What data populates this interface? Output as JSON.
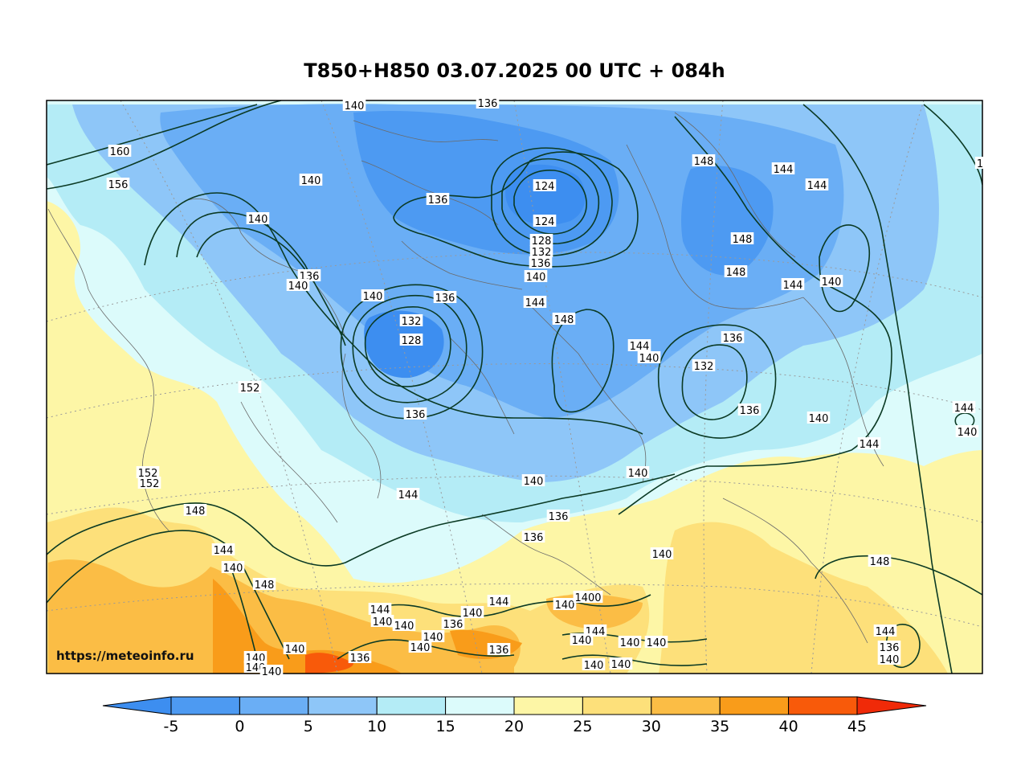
{
  "title": "T850+H850 03.07.2025 00 UTC + 084h",
  "watermark": "https://meteoinfo.ru",
  "colors": {
    "t_lt_m5": "#3d8ef0",
    "t_m5_0": "#4d9af2",
    "t_0_5": "#6aaef5",
    "t_5_10": "#8ec6f8",
    "t_10_15": "#b4ecf6",
    "t_15_20": "#dcfbfb",
    "t_20_25": "#fdf6a6",
    "t_25_30": "#fde07a",
    "t_30_35": "#fbbd45",
    "t_35_40": "#f99c1a",
    "t_40_45": "#f85a0a",
    "t_gt_45": "#f02a08",
    "contour": "#0b3a24"
  },
  "colorbar": {
    "ticks": [
      "-5",
      "0",
      "5",
      "10",
      "15",
      "20",
      "25",
      "30",
      "35",
      "40",
      "45"
    ]
  },
  "contour_labels": [
    {
      "text": "140",
      "id": "l1"
    },
    {
      "text": "136",
      "id": "l2"
    },
    {
      "text": "160",
      "id": "l3"
    },
    {
      "text": "156",
      "id": "l4"
    },
    {
      "text": "140",
      "id": "l5"
    },
    {
      "text": "136",
      "id": "l6"
    },
    {
      "text": "140",
      "id": "l7"
    },
    {
      "text": "124",
      "id": "l8"
    },
    {
      "text": "124",
      "id": "l9"
    },
    {
      "text": "128",
      "id": "l10"
    },
    {
      "text": "132",
      "id": "l11"
    },
    {
      "text": "136",
      "id": "l12"
    },
    {
      "text": "140",
      "id": "l13"
    },
    {
      "text": "148",
      "id": "l14"
    },
    {
      "text": "144",
      "id": "l15"
    },
    {
      "text": "144",
      "id": "l16"
    },
    {
      "text": "148",
      "id": "l17"
    },
    {
      "text": "148",
      "id": "l18"
    },
    {
      "text": "144",
      "id": "l19"
    },
    {
      "text": "140",
      "id": "l20"
    },
    {
      "text": "136",
      "id": "l21"
    },
    {
      "text": "140",
      "id": "l22"
    },
    {
      "text": "136",
      "id": "l23"
    },
    {
      "text": "132",
      "id": "l24"
    },
    {
      "text": "128",
      "id": "l25"
    },
    {
      "text": "144",
      "id": "l26"
    },
    {
      "text": "148",
      "id": "l27"
    },
    {
      "text": "136",
      "id": "l28"
    },
    {
      "text": "144",
      "id": "l29"
    },
    {
      "text": "140",
      "id": "l30"
    },
    {
      "text": "132",
      "id": "l31"
    },
    {
      "text": "136",
      "id": "l32"
    },
    {
      "text": "140",
      "id": "l33"
    },
    {
      "text": "144",
      "id": "l34"
    },
    {
      "text": "140",
      "id": "l35"
    },
    {
      "text": "144",
      "id": "l36"
    },
    {
      "text": "152",
      "id": "l37"
    },
    {
      "text": "136",
      "id": "l38"
    },
    {
      "text": "152",
      "id": "l39"
    },
    {
      "text": "152",
      "id": "l40"
    },
    {
      "text": "148",
      "id": "l41"
    },
    {
      "text": "144",
      "id": "l42"
    },
    {
      "text": "140",
      "id": "l43"
    },
    {
      "text": "148",
      "id": "l44"
    },
    {
      "text": "140",
      "id": "l45"
    },
    {
      "text": "144",
      "id": "l46"
    },
    {
      "text": "140",
      "id": "l47"
    },
    {
      "text": "136",
      "id": "l48"
    },
    {
      "text": "136",
      "id": "l49"
    },
    {
      "text": "140",
      "id": "l50"
    },
    {
      "text": "140",
      "id": "l51"
    },
    {
      "text": "148",
      "id": "l52"
    },
    {
      "text": "144",
      "id": "l53"
    },
    {
      "text": "140",
      "id": "l54"
    },
    {
      "text": "140",
      "id": "l55"
    },
    {
      "text": "136",
      "id": "l56"
    },
    {
      "text": "140",
      "id": "l57"
    },
    {
      "text": "144",
      "id": "l58"
    },
    {
      "text": "140",
      "id": "l59"
    },
    {
      "text": "1400",
      "id": "l60"
    },
    {
      "text": "144",
      "id": "l61"
    },
    {
      "text": "140",
      "id": "l62"
    },
    {
      "text": "140",
      "id": "l63"
    },
    {
      "text": "140",
      "id": "l64"
    },
    {
      "text": "140",
      "id": "l65"
    },
    {
      "text": "140",
      "id": "l66"
    },
    {
      "text": "136",
      "id": "l67"
    },
    {
      "text": "140",
      "id": "l68"
    },
    {
      "text": "140",
      "id": "l69"
    },
    {
      "text": "136",
      "id": "l70"
    },
    {
      "text": "140",
      "id": "l71"
    },
    {
      "text": "144",
      "id": "l72"
    },
    {
      "text": "136",
      "id": "l73"
    },
    {
      "text": "140",
      "id": "l74"
    },
    {
      "text": "140",
      "id": "l75"
    },
    {
      "text": "140",
      "id": "l76"
    },
    {
      "text": "140",
      "id": "l77"
    },
    {
      "text": "1",
      "id": "l78"
    }
  ]
}
